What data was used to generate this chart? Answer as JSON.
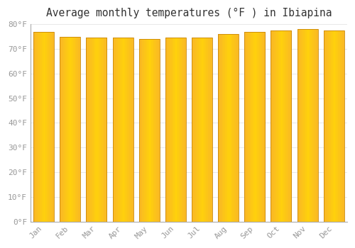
{
  "title": "Average monthly temperatures (°F ) in Ibiapina",
  "months": [
    "Jan",
    "Feb",
    "Mar",
    "Apr",
    "May",
    "Jun",
    "Jul",
    "Aug",
    "Sep",
    "Oct",
    "Nov",
    "Dec"
  ],
  "values": [
    77,
    75,
    74.5,
    74.5,
    74,
    74.5,
    74.5,
    76,
    77,
    77.5,
    78,
    77.5
  ],
  "bar_color_light": "#FFD04D",
  "bar_color_dark": "#F5A800",
  "bar_edge_color": "#C8870A",
  "ylim": [
    0,
    80
  ],
  "ytick_step": 10,
  "background_color": "#FFFFFF",
  "grid_color": "#E8E8E8",
  "title_fontsize": 10.5,
  "tick_fontsize": 8,
  "tick_color": "#999999",
  "font_family": "monospace"
}
